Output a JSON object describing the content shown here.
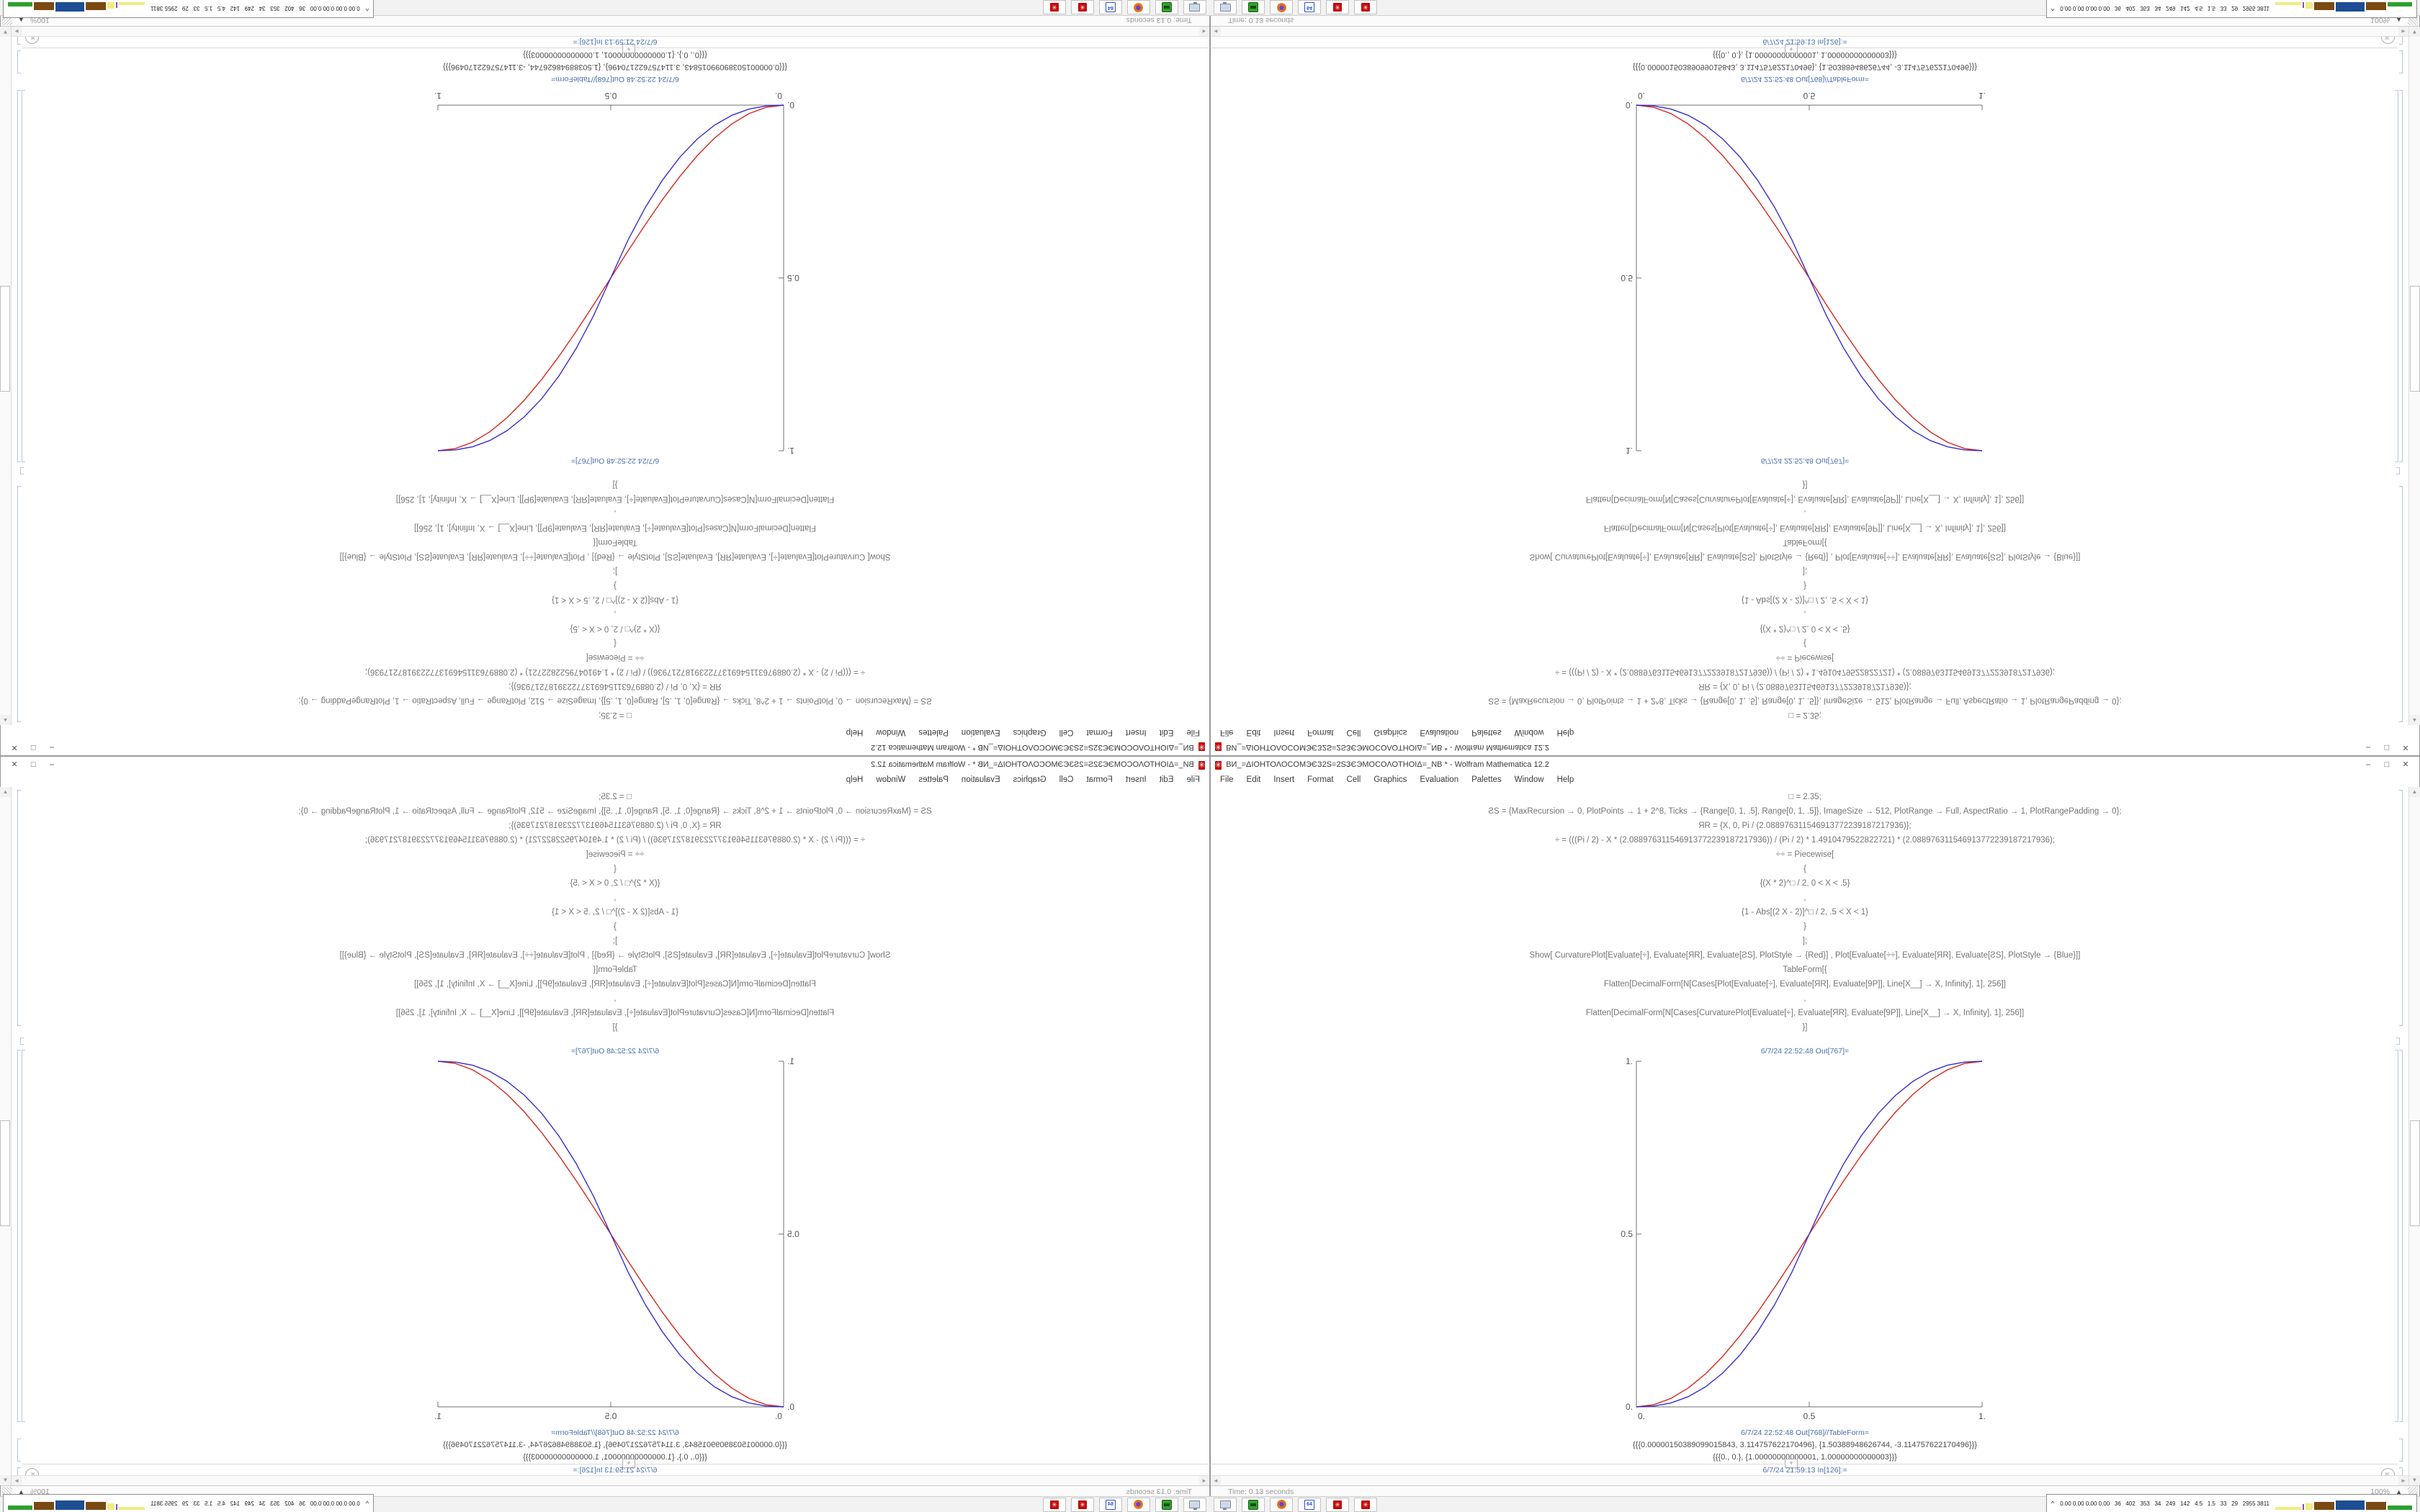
{
  "window": {
    "title": "ВИ_=ΔΙΟΗΤΟΛΟCOMЭЄЗ2Ѕ=2ЅЗЄЭMOCΟΛΟΤΗΟΙΔ=_NB * - Wolfram Mathematica 12.2",
    "controls": {
      "minimize": "–",
      "maximize": "□",
      "close": "✕"
    },
    "menu": [
      "File",
      "Edit",
      "Insert",
      "Format",
      "Cell",
      "Graphics",
      "Evaluation",
      "Palettes",
      "Window",
      "Help"
    ],
    "status_left": "Time: 0.13 seconds",
    "zoom_level": "100%"
  },
  "icons": {
    "up_arrow": "▲",
    "down_arrow": "▼",
    "left_arrow": "◄",
    "right_arrow": "►",
    "magnification_triangle": "▲",
    "scroll_chevron": "«",
    "tray_chevron": "^",
    "spikey": "✳"
  },
  "notebook": {
    "input_lines": [
      "□ = 2.35;",
      "ƧS = {MaxRecursion → 0, PlotPoints → 1 + 2^8, Ticks → {Range[0, 1, .5], Range[0, 1, .5]}, ImageSize → 512, PlotRange → Full, AspectRatio → 1, PlotRangePadding → 0};",
      "ЯR = {X, 0, Pi / (2.088976311546913772239187217936)};",
      "÷ = (((Pi / 2) - X * (2.088976311546913772239187217936)) / (Pi / 2) * 1.4910479522822721) * (2.088976311546913772239187217936);",
      "÷÷ = Piecewise[",
      "{",
      "{(X * 2)^□ / 2, 0 < X < .5}",
      ",",
      "{1 - Abs[(2 X - 2)]^□ / 2, .5 < X < 1}",
      "}",
      "];",
      "Show[  CurvaturePlot[Evaluate[÷], Evaluate[ЯR], Evaluate[ƧS], PlotStyle → {Red}]  ,  Plot[Evaluate[÷÷], Evaluate[ЯR], Evaluate[ƧS],  PlotStyle → {Blue}]]",
      "TableForm[{",
      "Flatten[DecimalForm[N[Cases[Plot[Evaluate[÷], Evaluate[ЯR], Evaluate[9P]], Line[X__] → X, Infinity], 1], 256]]",
      ",",
      "Flatten[DecimalForm[N[Cases[CurvaturePlot[Evaluate[÷], Evaluate[ЯR], Evaluate[9P]], Line[X__] → X, Infinity], 1], 256]]",
      "}]"
    ],
    "out1_label": "6/7/24 22:52:48 Out[767]=",
    "out2_label": "6/7/24 22:52:48 Out[768]//TableForm=",
    "table_rows": [
      "{{{0.00000150389099015843, 3.114757622170496}, {1.50388948626744, -3.114757622170496}}}",
      "{{{0., 0.}, {1.00000000000001, 1.00000000000003}}}"
    ],
    "insert_plus": "+",
    "in_label": "6/7/24 21:59:13 In[126]:="
  },
  "chart_data": {
    "type": "line",
    "title": "",
    "xlabel": "",
    "ylabel": "",
    "xlim": [
      0,
      1
    ],
    "ylim": [
      0,
      1
    ],
    "grid": false,
    "legend": "none",
    "axis_color": "#707070",
    "tick_label_color": "#555555",
    "xticks": [
      0,
      0.5,
      1
    ],
    "yticks": [
      0,
      0.5,
      1
    ],
    "xtick_labels": [
      "0.",
      "0.5",
      "1."
    ],
    "ytick_labels": [
      "0.",
      "0.5",
      "1."
    ],
    "x": [
      0,
      0.05,
      0.1,
      0.15,
      0.2,
      0.25,
      0.3,
      0.35,
      0.4,
      0.45,
      0.5,
      0.55,
      0.6,
      0.65,
      0.7,
      0.75,
      0.8,
      0.85,
      0.9,
      0.95,
      1
    ],
    "series": [
      {
        "name": "CurvaturePlot (Red)",
        "color": "#d8281e",
        "values": [
          0,
          0.0062,
          0.0245,
          0.0545,
          0.0955,
          0.1464,
          0.2061,
          0.273,
          0.3455,
          0.4218,
          0.5,
          0.5782,
          0.6545,
          0.727,
          0.7939,
          0.8536,
          0.9045,
          0.9455,
          0.9755,
          0.9938,
          1
        ]
      },
      {
        "name": "Plot piecewise (Blue)",
        "color": "#3a2fd0",
        "values": [
          0,
          0.0022,
          0.0114,
          0.0295,
          0.058,
          0.0981,
          0.1504,
          0.2163,
          0.296,
          0.3903,
          0.5,
          0.6097,
          0.704,
          0.7837,
          0.8496,
          0.9019,
          0.942,
          0.9705,
          0.9886,
          0.9978,
          1
        ]
      }
    ]
  },
  "taskbar": {
    "buttons": [
      {
        "icon": "screen-capture-icon",
        "label": ""
      },
      {
        "icon": "green-app-icon",
        "label": ""
      },
      {
        "icon": "firefox-icon",
        "label": ""
      },
      {
        "icon": "floppy-disk-64-icon",
        "label": "64"
      },
      {
        "icon": "mathematica-icon",
        "label": "✳"
      },
      {
        "icon": "mathematica-icon",
        "label": "✳"
      }
    ]
  },
  "tray": {
    "numbers": "0.00 0.00 0.00 0.00   36   402   353   34   249   142   4.5   1.5   33   29   2955 3811",
    "graph_segments": [
      {
        "color": "#f1ec82",
        "width": 36,
        "height": 4
      },
      {
        "color": "#8a49c9",
        "width": 2,
        "height": 8
      },
      {
        "color": "#f1ec82",
        "width": 10,
        "height": 9
      },
      {
        "color": "#7a4a12",
        "width": 28,
        "height": 11
      },
      {
        "color": "#1d4e93",
        "width": 40,
        "height": 13
      },
      {
        "color": "#7a4a12",
        "width": 28,
        "height": 11
      },
      {
        "color": "#2ea02e",
        "width": 34,
        "height": 6
      }
    ]
  }
}
